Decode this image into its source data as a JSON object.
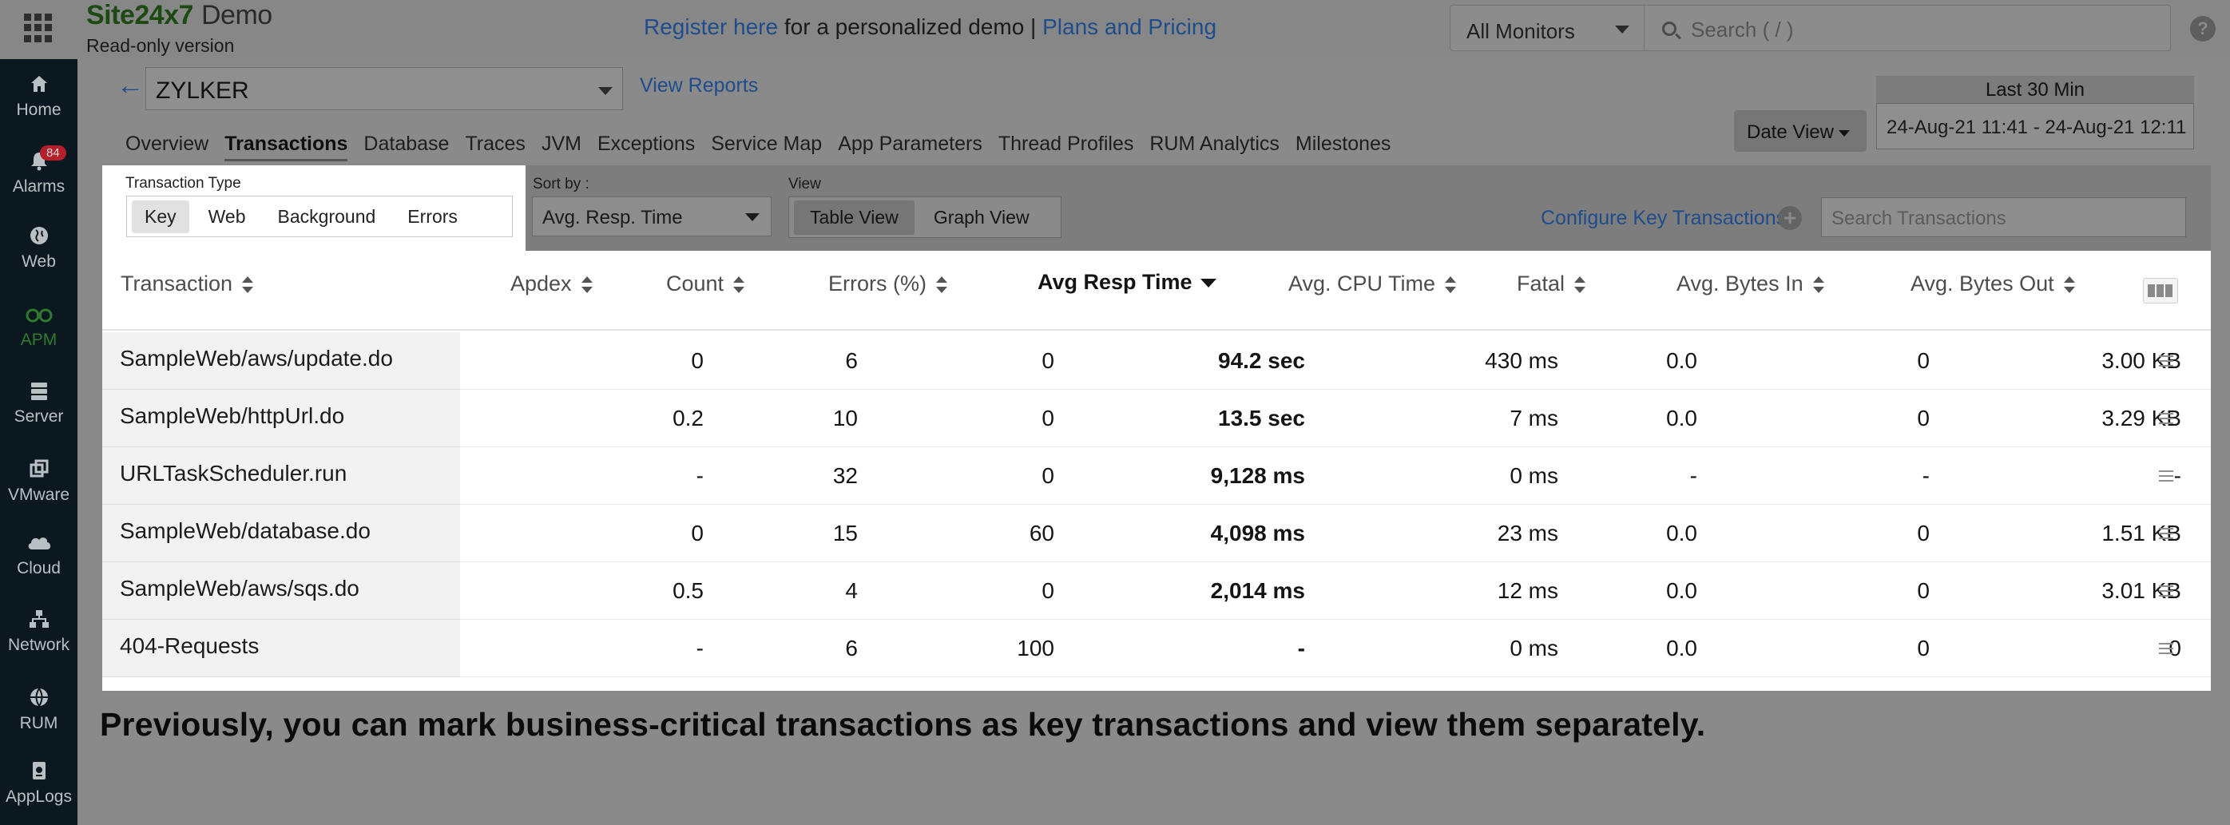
{
  "header": {
    "brand": "Site24x7",
    "brand_suffix": "Demo",
    "readonly": "Read-only version",
    "promo_link1": "Register here",
    "promo_text": "for a personalized demo |",
    "promo_link2": "Plans and Pricing",
    "monitor_select": "All Monitors",
    "search_placeholder": "Search ( / )",
    "help_label": "?"
  },
  "sidebar": {
    "alarm_count": "84",
    "items": [
      {
        "label": "Home",
        "icon": "home-icon"
      },
      {
        "label": "Alarms",
        "icon": "bell-icon"
      },
      {
        "label": "Web",
        "icon": "globe-icon"
      },
      {
        "label": "APM",
        "icon": "binoculars-icon"
      },
      {
        "label": "Server",
        "icon": "server-icon"
      },
      {
        "label": "VMware",
        "icon": "vmware-icon"
      },
      {
        "label": "Cloud",
        "icon": "cloud-icon"
      },
      {
        "label": "Network",
        "icon": "network-icon"
      },
      {
        "label": "RUM",
        "icon": "rum-globe-icon"
      },
      {
        "label": "AppLogs",
        "icon": "applogs-icon"
      }
    ],
    "active": "APM"
  },
  "page": {
    "back_label": "←",
    "app_name": "ZYLKER",
    "view_reports": "View Reports",
    "tabs": [
      "Overview",
      "Transactions",
      "Database",
      "Traces",
      "JVM",
      "Exceptions",
      "Service Map",
      "App Parameters",
      "Thread Profiles",
      "RUM Analytics",
      "Milestones"
    ],
    "active_tab": "Transactions",
    "date_view": "Date View",
    "date_label": "Last 30 Min",
    "date_range": "24-Aug-21 11:41 - 24-Aug-21 12:11"
  },
  "filters": {
    "transaction_type_label": "Transaction Type",
    "transaction_types": [
      "Key",
      "Web",
      "Background",
      "Errors"
    ],
    "selected_type": "Key",
    "sort_label": "Sort by :",
    "sort_value": "Avg. Resp. Time",
    "view_label": "View",
    "views": [
      "Table View",
      "Graph View"
    ],
    "selected_view": "Table View",
    "configure_key": "Configure Key Transactions",
    "configure_plus": "+",
    "search_placeholder": "Search Transactions"
  },
  "table": {
    "columns": [
      "Transaction",
      "Apdex",
      "Count",
      "Errors (%)",
      "Avg Resp Time",
      "Avg. CPU Time",
      "Fatal",
      "Avg. Bytes In",
      "Avg. Bytes Out"
    ],
    "sorted_column": "Avg Resp Time",
    "rows": [
      {
        "name": "SampleWeb/aws/update.do",
        "apdex": "0",
        "count": "6",
        "errors": "0",
        "resp": "94.2 sec",
        "cpu": "430 ms",
        "fatal": "0.0",
        "bytes_in": "0",
        "bytes_out": "3.00 KB"
      },
      {
        "name": "SampleWeb/httpUrl.do",
        "apdex": "0.2",
        "count": "10",
        "errors": "0",
        "resp": "13.5 sec",
        "cpu": "7 ms",
        "fatal": "0.0",
        "bytes_in": "0",
        "bytes_out": "3.29 KB"
      },
      {
        "name": "URLTaskScheduler.run",
        "apdex": "-",
        "count": "32",
        "errors": "0",
        "resp": "9,128 ms",
        "cpu": "0 ms",
        "fatal": "-",
        "bytes_in": "-",
        "bytes_out": "-"
      },
      {
        "name": "SampleWeb/database.do",
        "apdex": "0",
        "count": "15",
        "errors": "60",
        "resp": "4,098 ms",
        "cpu": "23 ms",
        "fatal": "0.0",
        "bytes_in": "0",
        "bytes_out": "1.51 KB"
      },
      {
        "name": "SampleWeb/aws/sqs.do",
        "apdex": "0.5",
        "count": "4",
        "errors": "0",
        "resp": "2,014 ms",
        "cpu": "12 ms",
        "fatal": "0.0",
        "bytes_in": "0",
        "bytes_out": "3.01 KB"
      },
      {
        "name": "404-Requests",
        "apdex": "-",
        "count": "6",
        "errors": "100",
        "resp": "-",
        "cpu": "0 ms",
        "fatal": "0.0",
        "bytes_in": "0",
        "bytes_out": "0"
      }
    ]
  },
  "caption": "Previously, you can mark business-critical transactions as key transactions and view them separately.",
  "colors": {
    "link": "#1e4c8c",
    "sidebar_bg": "#0c1820",
    "active_nav": "#2f7a2f",
    "badge": "#b5202a"
  }
}
